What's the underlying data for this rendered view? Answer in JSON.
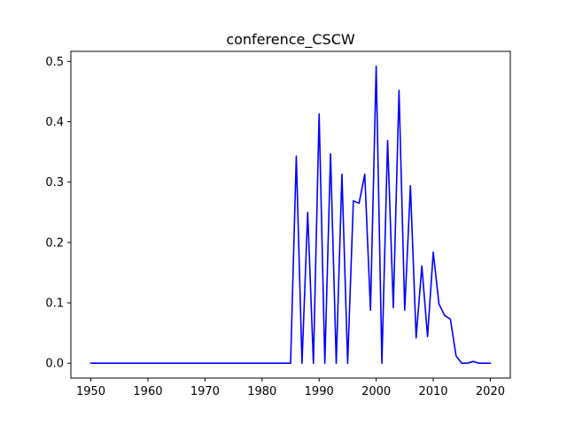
{
  "chart_data": {
    "type": "line",
    "title": "conference_CSCW",
    "xlabel": "",
    "ylabel": "",
    "xlim": [
      1946.5,
      2023.5
    ],
    "ylim": [
      -0.0246,
      0.5166
    ],
    "x_ticks": [
      1950,
      1960,
      1970,
      1980,
      1990,
      2000,
      2010,
      2020
    ],
    "y_ticks": [
      0.0,
      0.1,
      0.2,
      0.3,
      0.4,
      0.5
    ],
    "x_tick_labels": [
      "1950",
      "1960",
      "1970",
      "1980",
      "1990",
      "2000",
      "2010",
      "2020"
    ],
    "y_tick_labels": [
      "0.0",
      "0.1",
      "0.2",
      "0.3",
      "0.4",
      "0.5"
    ],
    "grid": false,
    "series": [
      {
        "color": "#0000ff",
        "x": [
          1950,
          1951,
          1952,
          1953,
          1954,
          1955,
          1956,
          1957,
          1958,
          1959,
          1960,
          1961,
          1962,
          1963,
          1964,
          1965,
          1966,
          1967,
          1968,
          1969,
          1970,
          1971,
          1972,
          1973,
          1974,
          1975,
          1976,
          1977,
          1978,
          1979,
          1980,
          1981,
          1982,
          1983,
          1984,
          1985,
          1986,
          1987,
          1988,
          1989,
          1990,
          1991,
          1992,
          1993,
          1994,
          1995,
          1996,
          1997,
          1998,
          1999,
          2000,
          2001,
          2002,
          2003,
          2004,
          2005,
          2006,
          2007,
          2008,
          2009,
          2010,
          2011,
          2012,
          2013,
          2014,
          2015,
          2016,
          2017,
          2018,
          2019,
          2020
        ],
        "y": [
          0,
          0,
          0,
          0,
          0,
          0,
          0,
          0,
          0,
          0,
          0,
          0,
          0,
          0,
          0,
          0,
          0,
          0,
          0,
          0,
          0,
          0,
          0,
          0,
          0,
          0,
          0,
          0,
          0,
          0,
          0,
          0,
          0,
          0,
          0,
          0,
          0.343,
          0,
          0.25,
          0,
          0.413,
          0,
          0.347,
          0,
          0.313,
          0,
          0.269,
          0.265,
          0.313,
          0.088,
          0.492,
          0,
          0.369,
          0.092,
          0.452,
          0.088,
          0.294,
          0.042,
          0.161,
          0.044,
          0.184,
          0.098,
          0.079,
          0.073,
          0.012,
          0,
          0,
          0.003,
          0,
          0,
          0
        ]
      }
    ]
  }
}
